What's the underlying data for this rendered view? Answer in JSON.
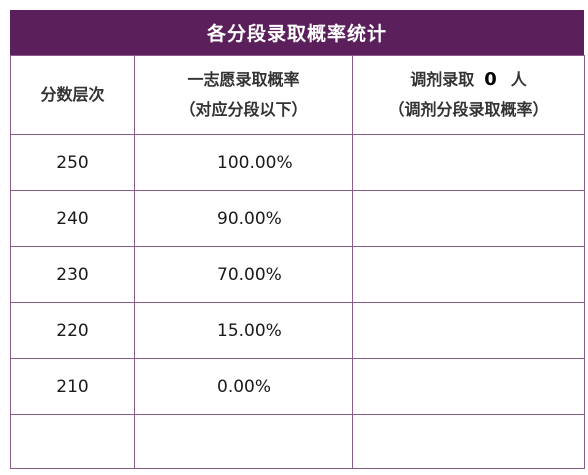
{
  "title": "各分段录取概率统计",
  "headers": {
    "score_level": "分数层次",
    "first_choice_line1": "一志愿录取概率",
    "first_choice_line2": "（对应分段以下）",
    "adjust_prefix": "调剂录取",
    "adjust_count": "0",
    "adjust_suffix": "人",
    "adjust_line2": "（调剂分段录取概率）"
  },
  "rows": [
    {
      "score": "250",
      "rate": "100.00%",
      "adjust": ""
    },
    {
      "score": "240",
      "rate": "90.00%",
      "adjust": ""
    },
    {
      "score": "230",
      "rate": "70.00%",
      "adjust": ""
    },
    {
      "score": "220",
      "rate": "15.00%",
      "adjust": ""
    },
    {
      "score": "210",
      "rate": "0.00%",
      "adjust": ""
    },
    {
      "score": "",
      "rate": "",
      "adjust": ""
    }
  ],
  "colors": {
    "title_bg": "#5b1f5c",
    "border": "#8a5a8b"
  }
}
